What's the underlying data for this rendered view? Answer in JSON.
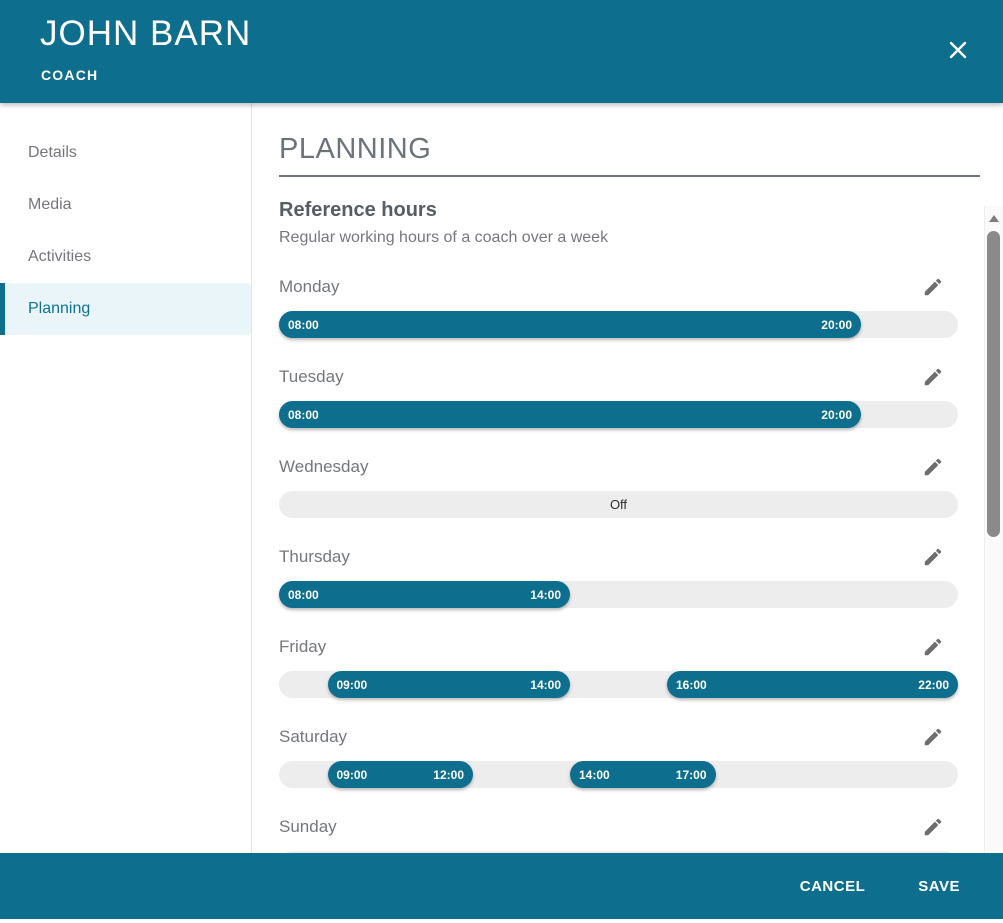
{
  "header": {
    "title": "JOHN BARN",
    "subtitle": "COACH",
    "close_icon": "✕"
  },
  "sidebar": {
    "items": [
      {
        "label": "Details",
        "active": false
      },
      {
        "label": "Media",
        "active": false
      },
      {
        "label": "Activities",
        "active": false
      },
      {
        "label": "Planning",
        "active": true
      }
    ]
  },
  "content": {
    "page_title": "PLANNING",
    "section_title": "Reference hours",
    "section_subtitle": "Regular working hours of a coach over a week",
    "timeline": {
      "start": "08:00",
      "end": "22:00"
    },
    "edit_icon": "✎",
    "days": [
      {
        "label": "Monday",
        "off": false,
        "segments": [
          {
            "start": "08:00",
            "end": "20:00"
          }
        ]
      },
      {
        "label": "Tuesday",
        "off": false,
        "segments": [
          {
            "start": "08:00",
            "end": "20:00"
          }
        ]
      },
      {
        "label": "Wednesday",
        "off": true,
        "off_label": "Off",
        "segments": []
      },
      {
        "label": "Thursday",
        "off": false,
        "segments": [
          {
            "start": "08:00",
            "end": "14:00"
          }
        ]
      },
      {
        "label": "Friday",
        "off": false,
        "segments": [
          {
            "start": "09:00",
            "end": "14:00"
          },
          {
            "start": "16:00",
            "end": "22:00"
          }
        ]
      },
      {
        "label": "Saturday",
        "off": false,
        "segments": [
          {
            "start": "09:00",
            "end": "12:00"
          },
          {
            "start": "14:00",
            "end": "17:00"
          }
        ]
      },
      {
        "label": "Sunday",
        "off": false,
        "segments": []
      }
    ]
  },
  "footer": {
    "cancel_label": "CANCEL",
    "save_label": "SAVE"
  },
  "colors": {
    "teal": "#0d6e8d",
    "track": "#ededee",
    "selected_bg": "#e9f5f9"
  }
}
